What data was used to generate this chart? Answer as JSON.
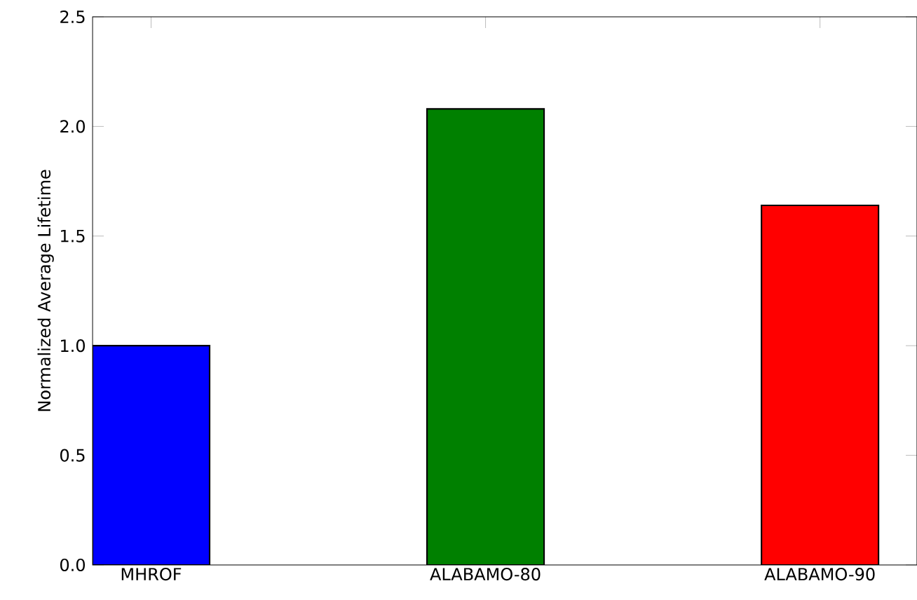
{
  "chart_data": {
    "type": "bar",
    "ylabel": "Normalized Average Lifetime",
    "categories": [
      "MHROF",
      "ALABAMO-80",
      "ALABAMO-90"
    ],
    "values": [
      1.0,
      2.08,
      1.64
    ],
    "colors": [
      "#0000ff",
      "#008000",
      "#ff0000"
    ],
    "ylim": [
      0,
      2.5
    ],
    "yticks": [
      {
        "value": 0,
        "label": "0.0"
      },
      0.5,
      {
        "value": 1,
        "label": "1.0"
      },
      1.5,
      {
        "value": 2,
        "label": "2.0"
      },
      2.5
    ],
    "grid": false
  }
}
